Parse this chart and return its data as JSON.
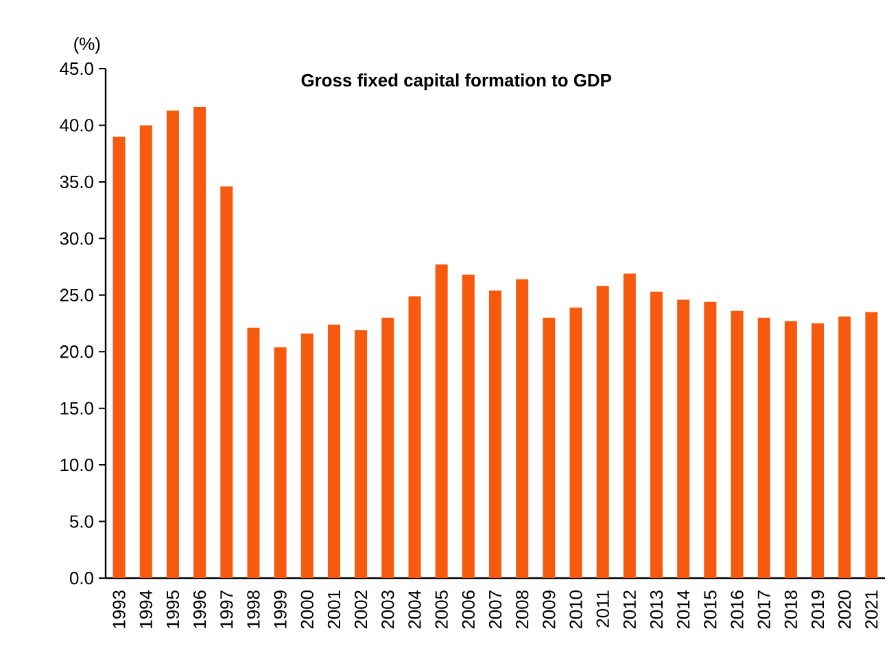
{
  "chart_data": {
    "type": "bar",
    "title": "Gross fixed capital formation to GDP",
    "ylabel": "(%)",
    "categories": [
      "1993",
      "1994",
      "1995",
      "1996",
      "1997",
      "1998",
      "1999",
      "2000",
      "2001",
      "2002",
      "2003",
      "2004",
      "2005",
      "2006",
      "2007",
      "2008",
      "2009",
      "2010",
      "2011",
      "2012",
      "2013",
      "2014",
      "2015",
      "2016",
      "2017",
      "2018",
      "2019",
      "2020",
      "2021"
    ],
    "values": [
      39.0,
      40.0,
      41.3,
      41.6,
      34.6,
      22.1,
      20.4,
      21.6,
      22.4,
      21.9,
      23.0,
      24.9,
      27.7,
      26.8,
      25.4,
      26.4,
      23.0,
      23.9,
      25.8,
      26.9,
      25.3,
      24.6,
      24.4,
      23.6,
      23.0,
      22.7,
      22.5,
      23.1,
      23.5
    ],
    "color": "#f55a0f",
    "ylim": [
      0,
      45
    ],
    "yticks": [
      {
        "value": 0,
        "label": "0.0"
      },
      {
        "value": 5,
        "label": "5.0"
      },
      {
        "value": 10,
        "label": "10.0"
      },
      {
        "value": 15,
        "label": "15.0"
      },
      {
        "value": 20,
        "label": "20.0"
      },
      {
        "value": 25,
        "label": "25.0"
      },
      {
        "value": 30,
        "label": "30.0"
      },
      {
        "value": 35,
        "label": "35.0"
      },
      {
        "value": 40,
        "label": "40.0"
      },
      {
        "value": 45,
        "label": "45.0"
      }
    ],
    "grid": false
  }
}
